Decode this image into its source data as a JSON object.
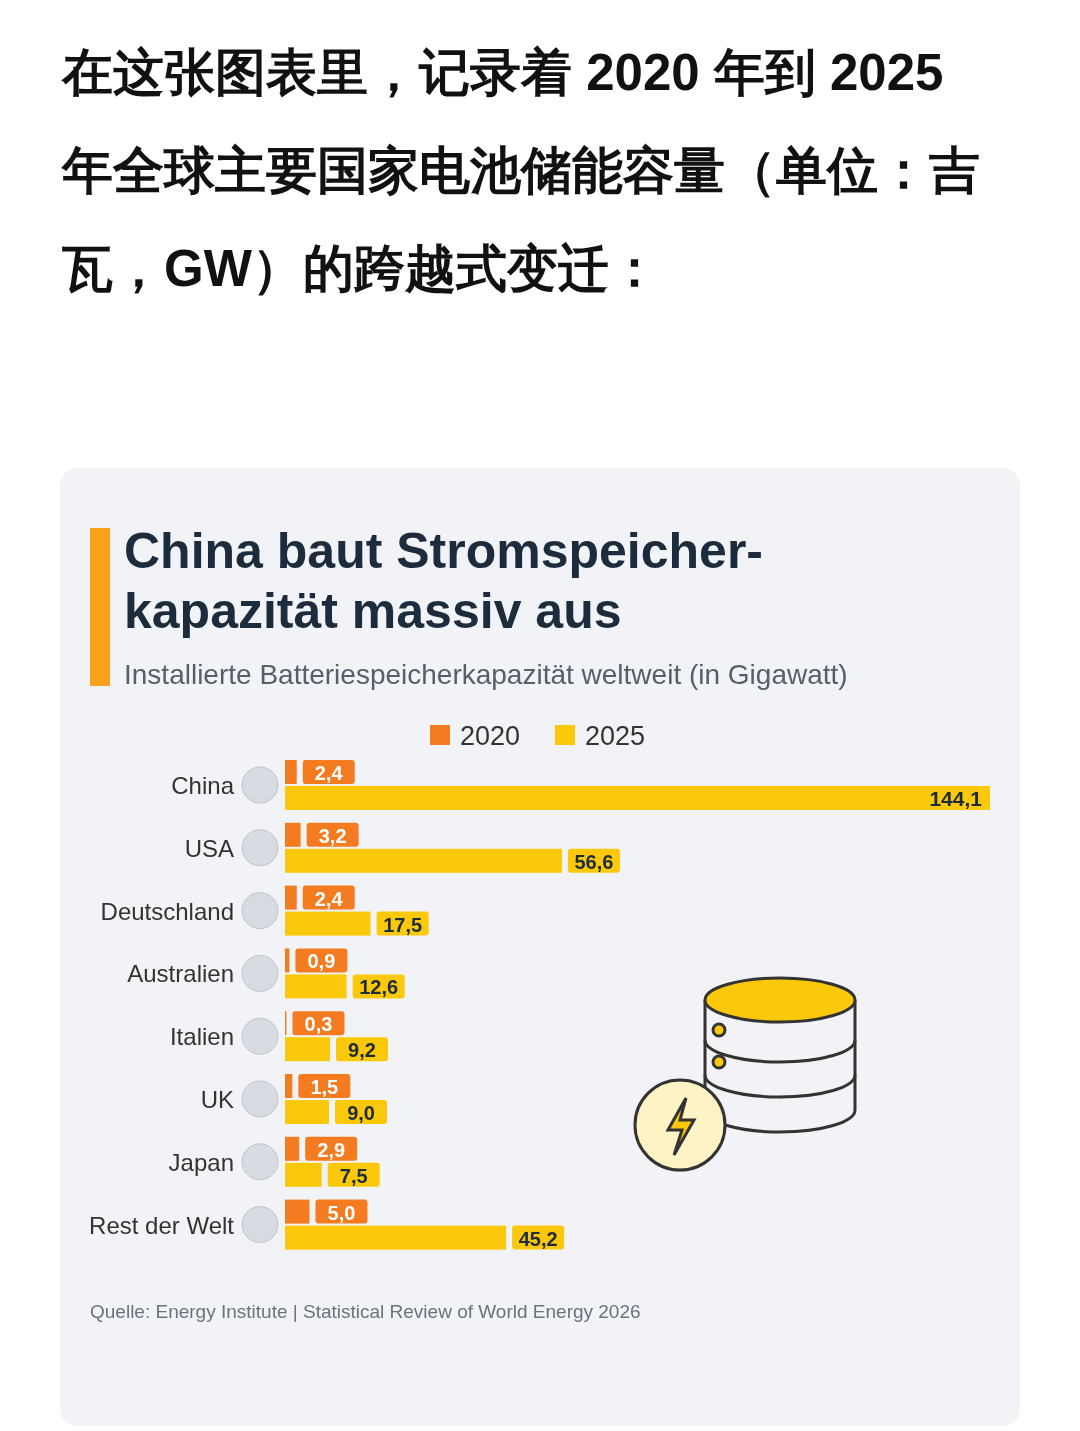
{
  "chart_data": {
    "type": "bar",
    "orientation": "horizontal",
    "title": "China baut Stromspeicher-kapazität massiv aus",
    "subtitle": "Installierte Batteriespeicherkapazität weltweit (in Gigawatt)",
    "annotations": [
      "在这张图表里，记录着 2020 年到 2025 年全球主要国家电池储能容量（单位：吉瓦，GW）的跨越式变迁：",
      "Quelle: Energy Institute | Statistical Review of World Energy 2026"
    ],
    "categories": [
      "China",
      "USA",
      "Deutschland",
      "Australien",
      "Italien",
      "UK",
      "Japan",
      "Rest der Welt"
    ],
    "series": [
      {
        "name": "2025",
        "color": "#fcc80a",
        "values": [
          144.1,
          56.6,
          17.5,
          12.6,
          9.2,
          9.0,
          7.5,
          45.2
        ],
        "value_labels": [
          "144,1",
          "56,6",
          "17,5",
          "12,6",
          "9,2",
          "9,0",
          "7,5",
          "45,2"
        ]
      },
      {
        "name": "2020",
        "color": "#f47b20",
        "values": [
          2.4,
          3.2,
          2.4,
          0.9,
          0.3,
          1.5,
          2.9,
          5.0
        ],
        "value_labels": [
          "2,4",
          "3,2",
          "2,4",
          "0,9",
          "0,3",
          "1,5",
          "2,9",
          "5,0"
        ]
      }
    ],
    "legend": "top"
  }
}
